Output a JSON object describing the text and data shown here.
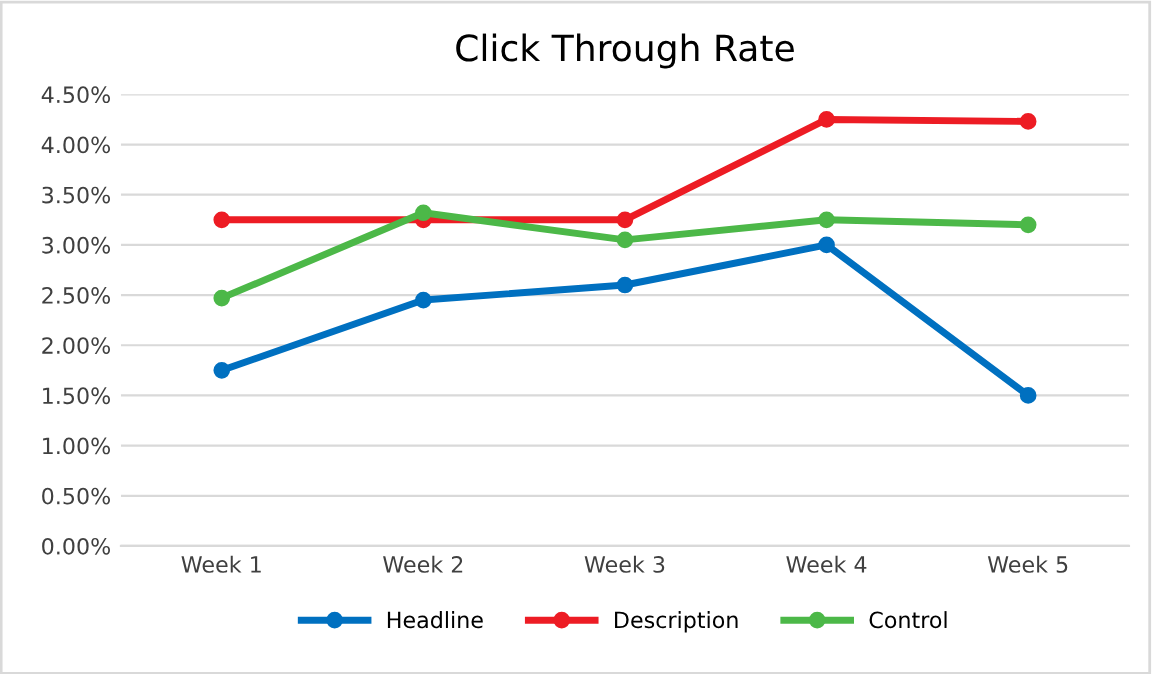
{
  "chart_data": {
    "type": "line",
    "title": "Click Through Rate",
    "categories": [
      "Week 1",
      "Week 2",
      "Week 3",
      "Week 4",
      "Week 5"
    ],
    "series": [
      {
        "name": "Headline",
        "color": "#0070c0",
        "values": [
          1.75,
          2.45,
          2.6,
          3.0,
          1.5
        ]
      },
      {
        "name": "Description",
        "color": "#ed1c24",
        "values": [
          3.25,
          3.25,
          3.25,
          4.25,
          4.23
        ]
      },
      {
        "name": "Control",
        "color": "#4cb848",
        "values": [
          2.47,
          3.32,
          3.05,
          3.25,
          3.2
        ]
      }
    ],
    "ylim": [
      0,
      4.5
    ],
    "yticks": [
      {
        "value": 0,
        "label": "0.00%"
      },
      {
        "value": 0.5,
        "label": "0.50%"
      },
      {
        "value": 1,
        "label": "1.00%"
      },
      {
        "value": 1.5,
        "label": "1.50%"
      },
      {
        "value": 2,
        "label": "2.00%"
      },
      {
        "value": 2.5,
        "label": "2.50%"
      },
      {
        "value": 3,
        "label": "3.00%"
      },
      {
        "value": 3.5,
        "label": "3.50%"
      },
      {
        "value": 4,
        "label": "4.00%"
      },
      {
        "value": 4.5,
        "label": "4.50%"
      }
    ],
    "grid": "y",
    "legend": "bottom",
    "marker": "circle",
    "line_style": "solid"
  }
}
